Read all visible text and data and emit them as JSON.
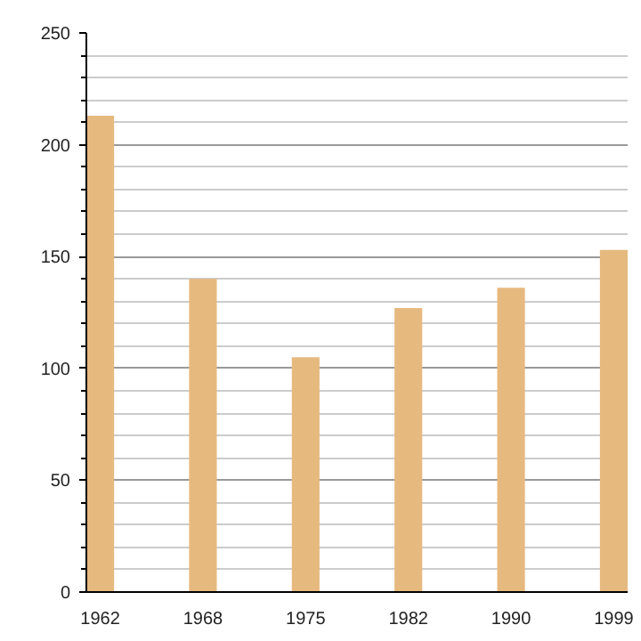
{
  "chart_data": {
    "type": "bar",
    "categories": [
      "1962",
      "1968",
      "1975",
      "1982",
      "1990",
      "1999"
    ],
    "values": [
      213,
      140,
      105,
      127,
      136,
      153
    ],
    "color": "#e6b97f",
    "ylim": [
      0,
      250
    ],
    "yticks": [
      0,
      50,
      100,
      150,
      200,
      250
    ],
    "grid": "y"
  }
}
